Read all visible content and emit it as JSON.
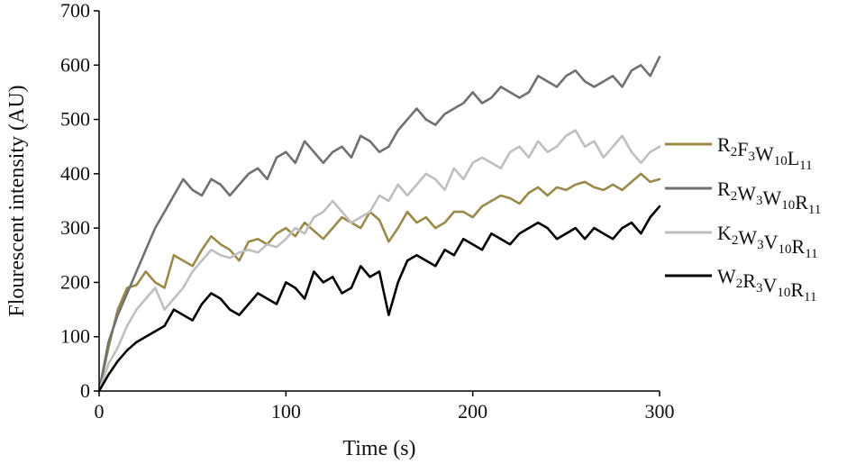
{
  "chart_data": {
    "type": "line",
    "title": "",
    "xlabel": "Time (s)",
    "ylabel": "Flourescent intensity (AU)",
    "xlim": [
      0,
      300
    ],
    "ylim": [
      0,
      700
    ],
    "x_ticks": [
      0,
      100,
      200,
      300
    ],
    "y_ticks": [
      0,
      100,
      200,
      300,
      400,
      500,
      600,
      700
    ],
    "grid": false,
    "legend_position": "right",
    "series": [
      {
        "name": "R2F3W10L11",
        "label_parts": [
          [
            "R",
            "2"
          ],
          [
            "F",
            "3"
          ],
          [
            "W",
            "10"
          ],
          [
            "L",
            "11"
          ]
        ],
        "color": "#9a8a4a",
        "x": [
          0,
          5,
          10,
          15,
          20,
          25,
          30,
          35,
          40,
          45,
          50,
          55,
          60,
          65,
          70,
          75,
          80,
          85,
          90,
          95,
          100,
          105,
          110,
          115,
          120,
          125,
          130,
          135,
          140,
          145,
          150,
          155,
          160,
          165,
          170,
          175,
          180,
          185,
          190,
          195,
          200,
          205,
          210,
          215,
          220,
          225,
          230,
          235,
          240,
          245,
          250,
          255,
          260,
          265,
          270,
          275,
          280,
          285,
          290,
          295,
          300
        ],
        "y": [
          0,
          80,
          150,
          190,
          195,
          220,
          200,
          190,
          250,
          240,
          230,
          260,
          285,
          270,
          260,
          240,
          275,
          280,
          270,
          290,
          300,
          285,
          310,
          295,
          280,
          300,
          320,
          310,
          300,
          330,
          315,
          275,
          300,
          330,
          310,
          320,
          300,
          310,
          330,
          330,
          320,
          340,
          350,
          360,
          355,
          345,
          365,
          375,
          360,
          375,
          370,
          380,
          385,
          375,
          370,
          380,
          370,
          385,
          400,
          385,
          390
        ]
      },
      {
        "name": "R2W3W10R11",
        "label_parts": [
          [
            "R",
            "2"
          ],
          [
            "W",
            "3"
          ],
          [
            "W",
            "10"
          ],
          [
            "R",
            "11"
          ]
        ],
        "color": "#707070",
        "x": [
          0,
          5,
          10,
          15,
          20,
          25,
          30,
          35,
          40,
          45,
          50,
          55,
          60,
          65,
          70,
          75,
          80,
          85,
          90,
          95,
          100,
          105,
          110,
          115,
          120,
          125,
          130,
          135,
          140,
          145,
          150,
          155,
          160,
          165,
          170,
          175,
          180,
          185,
          190,
          195,
          200,
          205,
          210,
          215,
          220,
          225,
          230,
          235,
          240,
          245,
          250,
          255,
          260,
          265,
          270,
          275,
          280,
          285,
          290,
          295,
          300
        ],
        "y": [
          0,
          90,
          140,
          180,
          220,
          260,
          300,
          330,
          360,
          390,
          370,
          360,
          390,
          380,
          360,
          380,
          400,
          410,
          390,
          430,
          440,
          420,
          460,
          440,
          420,
          440,
          450,
          430,
          470,
          460,
          440,
          450,
          480,
          500,
          520,
          500,
          490,
          510,
          520,
          530,
          550,
          530,
          540,
          560,
          550,
          540,
          550,
          580,
          570,
          560,
          580,
          590,
          570,
          560,
          570,
          580,
          560,
          590,
          600,
          580,
          615
        ]
      },
      {
        "name": "K2W3V10R11",
        "label_parts": [
          [
            "K",
            "2"
          ],
          [
            "W",
            "3"
          ],
          [
            "V",
            "10"
          ],
          [
            "R",
            "11"
          ]
        ],
        "color": "#bfbfbf",
        "x": [
          0,
          5,
          10,
          15,
          20,
          25,
          30,
          35,
          40,
          45,
          50,
          55,
          60,
          65,
          70,
          75,
          80,
          85,
          90,
          95,
          100,
          105,
          110,
          115,
          120,
          125,
          130,
          135,
          140,
          145,
          150,
          155,
          160,
          165,
          170,
          175,
          180,
          185,
          190,
          195,
          200,
          205,
          210,
          215,
          220,
          225,
          230,
          235,
          240,
          245,
          250,
          255,
          260,
          265,
          270,
          275,
          280,
          285,
          290,
          295,
          300
        ],
        "y": [
          0,
          50,
          80,
          120,
          150,
          170,
          190,
          150,
          170,
          190,
          220,
          240,
          260,
          250,
          245,
          255,
          260,
          255,
          270,
          265,
          280,
          300,
          290,
          320,
          330,
          350,
          330,
          310,
          320,
          330,
          360,
          350,
          380,
          360,
          380,
          400,
          390,
          370,
          410,
          390,
          420,
          430,
          420,
          410,
          440,
          450,
          430,
          460,
          440,
          450,
          470,
          480,
          450,
          460,
          430,
          450,
          470,
          440,
          420,
          440,
          450
        ]
      },
      {
        "name": "W2R3V10R11",
        "label_parts": [
          [
            "W",
            "2"
          ],
          [
            "R",
            "3"
          ],
          [
            "V",
            "10"
          ],
          [
            "R",
            "11"
          ]
        ],
        "color": "#000000",
        "x": [
          0,
          5,
          10,
          15,
          20,
          25,
          30,
          35,
          40,
          45,
          50,
          55,
          60,
          65,
          70,
          75,
          80,
          85,
          90,
          95,
          100,
          105,
          110,
          115,
          120,
          125,
          130,
          135,
          140,
          145,
          150,
          155,
          160,
          165,
          170,
          175,
          180,
          185,
          190,
          195,
          200,
          205,
          210,
          215,
          220,
          225,
          230,
          235,
          240,
          245,
          250,
          255,
          260,
          265,
          270,
          275,
          280,
          285,
          290,
          295,
          300
        ],
        "y": [
          0,
          30,
          55,
          75,
          90,
          100,
          110,
          120,
          150,
          140,
          130,
          160,
          180,
          170,
          150,
          140,
          160,
          180,
          170,
          160,
          200,
          190,
          170,
          220,
          200,
          210,
          180,
          190,
          230,
          210,
          220,
          140,
          200,
          240,
          250,
          240,
          230,
          260,
          250,
          280,
          270,
          260,
          290,
          280,
          270,
          290,
          300,
          310,
          300,
          280,
          290,
          300,
          280,
          300,
          290,
          280,
          300,
          310,
          290,
          320,
          340
        ]
      }
    ]
  }
}
